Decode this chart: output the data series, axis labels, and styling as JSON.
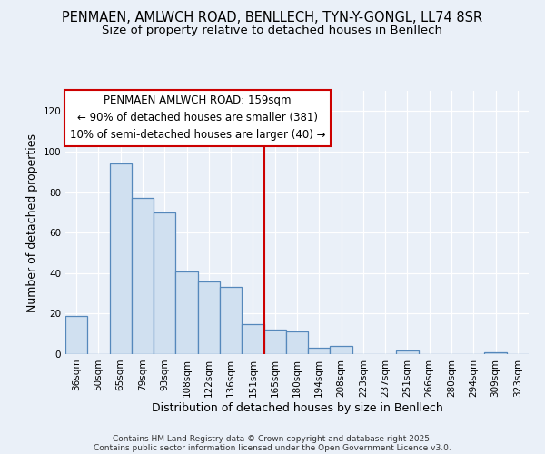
{
  "title_line1": "PENMAEN, AMLWCH ROAD, BENLLECH, TYN-Y-GONGL, LL74 8SR",
  "title_line2": "Size of property relative to detached houses in Benllech",
  "xlabel": "Distribution of detached houses by size in Benllech",
  "ylabel": "Number of detached properties",
  "categories": [
    "36sqm",
    "50sqm",
    "65sqm",
    "79sqm",
    "93sqm",
    "108sqm",
    "122sqm",
    "136sqm",
    "151sqm",
    "165sqm",
    "180sqm",
    "194sqm",
    "208sqm",
    "223sqm",
    "237sqm",
    "251sqm",
    "266sqm",
    "280sqm",
    "294sqm",
    "309sqm",
    "323sqm"
  ],
  "values": [
    19,
    0,
    94,
    77,
    70,
    41,
    36,
    33,
    15,
    12,
    11,
    3,
    4,
    0,
    0,
    2,
    0,
    0,
    0,
    1,
    0
  ],
  "bar_color": "#d0e0f0",
  "bar_edge_color": "#5588bb",
  "highlight_index": 8,
  "highlight_line_color": "#cc0000",
  "annotation_title": "PENMAEN AMLWCH ROAD: 159sqm",
  "annotation_line1": "← 90% of detached houses are smaller (381)",
  "annotation_line2": "10% of semi-detached houses are larger (40) →",
  "annotation_box_color": "#ffffff",
  "annotation_border_color": "#cc0000",
  "ylim": [
    0,
    130
  ],
  "yticks": [
    0,
    20,
    40,
    60,
    80,
    100,
    120
  ],
  "background_color": "#eaf0f8",
  "footer_line1": "Contains HM Land Registry data © Crown copyright and database right 2025.",
  "footer_line2": "Contains public sector information licensed under the Open Government Licence v3.0.",
  "title_fontsize": 10.5,
  "subtitle_fontsize": 9.5,
  "axis_label_fontsize": 9,
  "tick_fontsize": 7.5,
  "annotation_fontsize": 8.5
}
